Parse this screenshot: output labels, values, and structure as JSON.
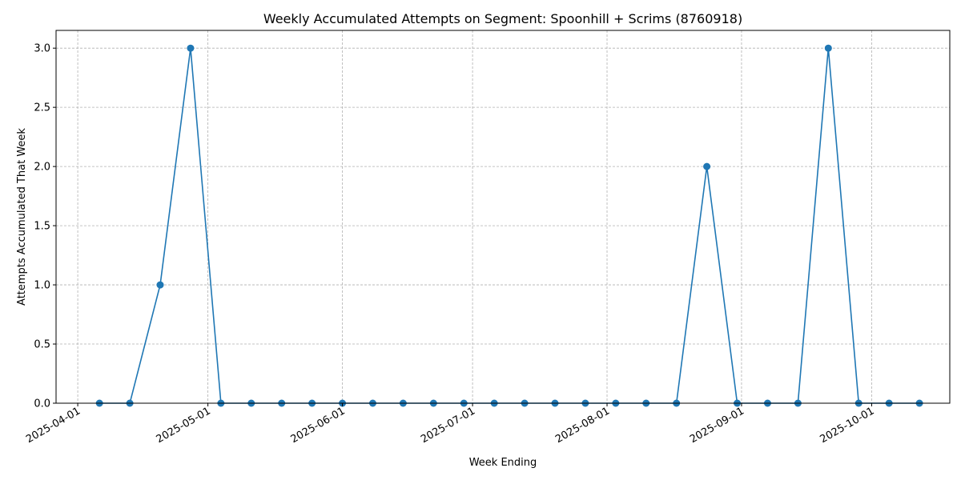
{
  "chart_data": {
    "type": "line",
    "title": "Weekly Accumulated Attempts on Segment: Spoonhill + Scrims (8760918)",
    "xlabel": "Week Ending",
    "ylabel": "Attempts Accumulated That Week",
    "xlim": [
      "2025-03-27",
      "2025-10-19"
    ],
    "ylim": [
      0,
      3.15
    ],
    "x_ticks": [
      "2025-04-01",
      "2025-05-01",
      "2025-06-01",
      "2025-07-01",
      "2025-08-01",
      "2025-09-01",
      "2025-10-01"
    ],
    "y_ticks": [
      "0.0",
      "0.5",
      "1.0",
      "1.5",
      "2.0",
      "2.5",
      "3.0"
    ],
    "grid": true,
    "series": [
      {
        "color": "#1f77b4",
        "x": [
          "2025-04-06",
          "2025-04-13",
          "2025-04-20",
          "2025-04-27",
          "2025-05-04",
          "2025-05-11",
          "2025-05-18",
          "2025-05-25",
          "2025-06-01",
          "2025-06-08",
          "2025-06-15",
          "2025-06-22",
          "2025-06-29",
          "2025-07-06",
          "2025-07-13",
          "2025-07-20",
          "2025-07-27",
          "2025-08-03",
          "2025-08-10",
          "2025-08-17",
          "2025-08-24",
          "2025-08-31",
          "2025-09-07",
          "2025-09-14",
          "2025-09-21",
          "2025-09-28",
          "2025-10-05",
          "2025-10-12"
        ],
        "y": [
          0,
          0,
          1,
          3,
          0,
          0,
          0,
          0,
          0,
          0,
          0,
          0,
          0,
          0,
          0,
          0,
          0,
          0,
          0,
          0,
          2,
          0,
          0,
          0,
          3,
          0,
          0,
          0
        ]
      }
    ]
  }
}
